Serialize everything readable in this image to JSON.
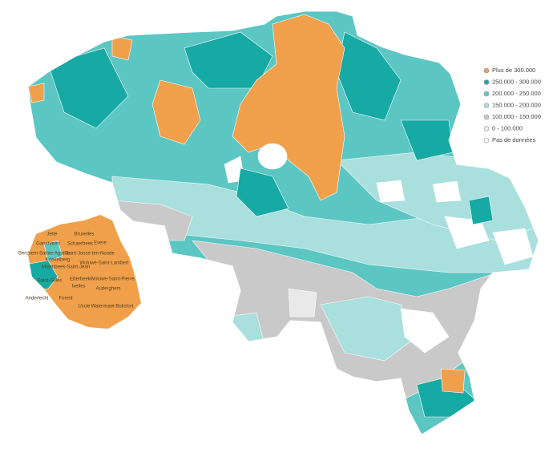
{
  "legend": {
    "items": [
      {
        "label": "Plus de 300.000",
        "color": "#f0a04b"
      },
      {
        "label": "250.000 - 300.000",
        "color": "#17a9a4"
      },
      {
        "label": "200.000 - 250.000",
        "color": "#5cc6c3"
      },
      {
        "label": "150.000 - 200.000",
        "color": "#a9dfdd"
      },
      {
        "label": "100.000 - 150.000",
        "color": "#c9c9c9"
      },
      {
        "label": "0 - 100.000",
        "color": "#e9e9e9"
      },
      {
        "label": "Pas de données",
        "color": "#ffffff"
      }
    ]
  },
  "brussels_inset": {
    "labels": [
      "Jette",
      "Bruxelles",
      "Ganshoren",
      "Schaerbeek",
      "Evere",
      "Berchem-Sainte-Agathe",
      "Koekelberg",
      "Saint-Josse-ten-Noode",
      "Molenbeek-Saint-Jean",
      "Woluwe-Saint-Lambert",
      "Etterbeek",
      "Woluwe-Saint-Pierre",
      "Saint-Gilles",
      "Ixelles",
      "Anderlecht",
      "Auderghem",
      "Forest",
      "Uccle",
      "Watermael-Boitsfort"
    ]
  }
}
